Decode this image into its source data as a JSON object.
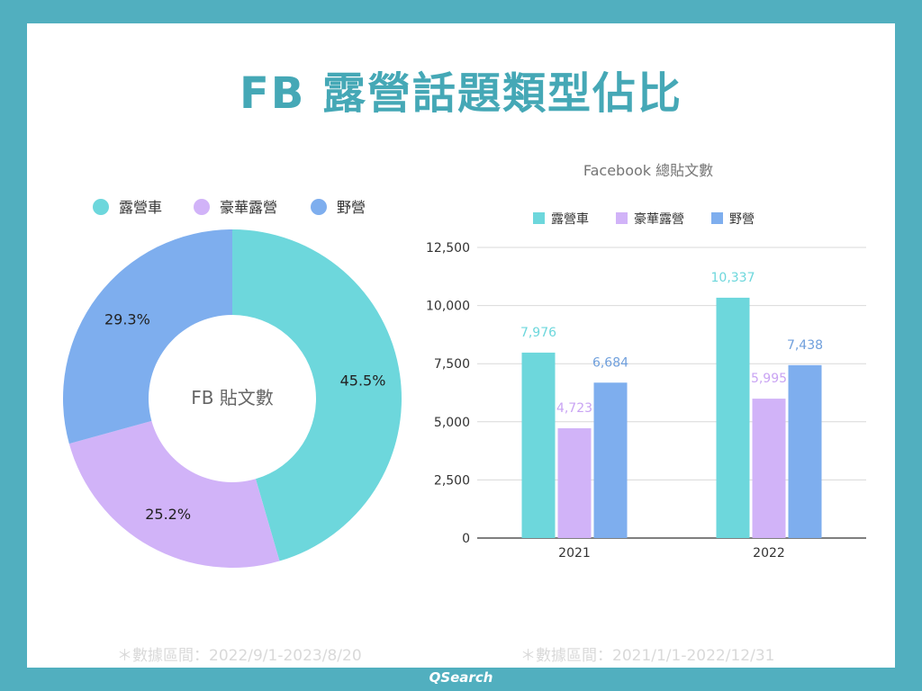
{
  "title": "FB 露營話題類型佔比",
  "brand": "QSearch",
  "pie": {
    "center_label": "FB 貼文數",
    "note": "＊數據區間：2022/9/1-2023/8/20",
    "legend": [
      {
        "name": "露營車",
        "color": "#6dd7dc"
      },
      {
        "name": "豪華露營",
        "color": "#d1b3f8"
      },
      {
        "name": "野營",
        "color": "#7eaeee"
      }
    ]
  },
  "bar": {
    "title": "Facebook 總貼文數",
    "note": "＊數據區間：2021/1/1-2022/12/31"
  },
  "chart_data": [
    {
      "type": "pie",
      "donut": true,
      "legend_position": "top",
      "slices": [
        {
          "name": "露營車",
          "value": 45.5,
          "label": "45.5%",
          "color": "#6dd7dc"
        },
        {
          "name": "豪華露營",
          "value": 25.2,
          "label": "25.2%",
          "color": "#d1b3f8"
        },
        {
          "name": "野營",
          "value": 29.3,
          "label": "29.3%",
          "color": "#7eaeee"
        }
      ]
    },
    {
      "type": "bar",
      "title": "Facebook 總貼文數",
      "legend_position": "top",
      "categories": [
        "2021",
        "2022"
      ],
      "series": [
        {
          "name": "露營車",
          "color": "#6dd7dc",
          "label_color": "#6dd7dc",
          "values": [
            7976,
            10337
          ],
          "labels": [
            "7,976",
            "10,337"
          ]
        },
        {
          "name": "豪華露營",
          "color": "#d1b3f8",
          "label_color": "#c9a4f3",
          "values": [
            4723,
            5995
          ],
          "labels": [
            "4,723",
            "5,995"
          ]
        },
        {
          "name": "野營",
          "color": "#7eaeee",
          "label_color": "#6f9fdc",
          "values": [
            6684,
            7438
          ],
          "labels": [
            "6,684",
            "7,438"
          ]
        }
      ],
      "ylim": [
        0,
        12500
      ],
      "yticks": [
        0,
        2500,
        5000,
        7500,
        10000,
        12500
      ],
      "ytick_labels": [
        "0",
        "2,500",
        "5,000",
        "7,500",
        "10,000",
        "12,500"
      ],
      "grid": true
    }
  ]
}
